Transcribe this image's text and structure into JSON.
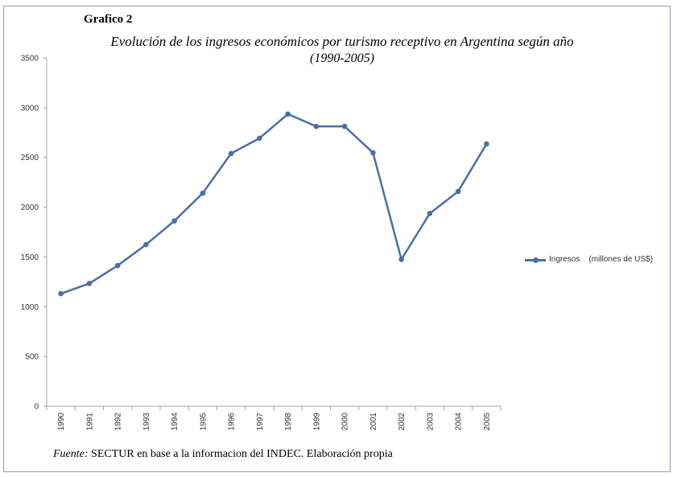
{
  "heading": "Grafico 2",
  "title_line1": "Evolución de los ingresos económicos por turismo receptivo en Argentina según año",
  "title_line2": "(1990-2005)",
  "footer": {
    "label": "Fuente:",
    "text": " SECTUR en base a la informacion del INDEC. Elaboración propia"
  },
  "colors": {
    "series": "#4a6fa5",
    "axis": "#a6a6a6"
  },
  "chart_data": {
    "type": "line",
    "x": [
      "1990",
      "1991",
      "1992",
      "1993",
      "1994",
      "1995",
      "1996",
      "1997",
      "1998",
      "1999",
      "2000",
      "2001",
      "2002",
      "2003",
      "2004",
      "2005"
    ],
    "series": [
      {
        "name": "Ingresos    (millones de US$)",
        "values": [
          1131,
          1233,
          1413,
          1624,
          1862,
          2141,
          2540,
          2693,
          2936,
          2812,
          2812,
          2547,
          1476,
          1937,
          2158,
          2636
        ]
      }
    ],
    "ylim": [
      0,
      3500
    ],
    "yticks": [
      0,
      500,
      1000,
      1500,
      2000,
      2500,
      3000,
      3500
    ],
    "grid": false,
    "legend": "right"
  }
}
